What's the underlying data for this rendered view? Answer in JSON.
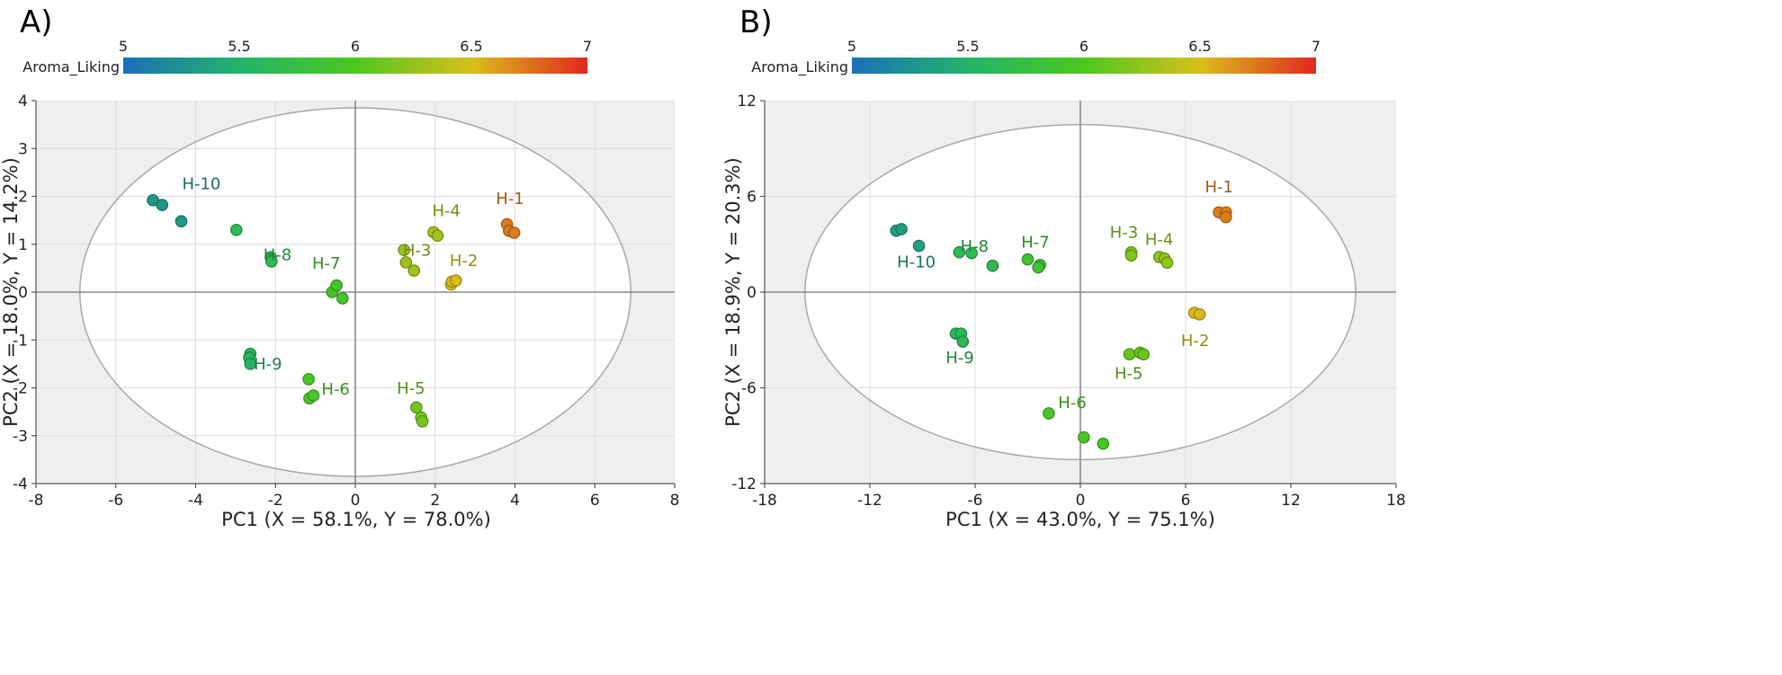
{
  "colorbar": {
    "colors": [
      "#1a70b8",
      "#22b468",
      "#4cc81e",
      "#d9bf1a",
      "#e3281f"
    ]
  },
  "chart_data": [
    {
      "type": "scatter",
      "panel_label": "A)",
      "title": "",
      "xlabel": "PC1 (X = 58.1%, Y = 78.0%)",
      "ylabel": "PC2 (X = 18.0%, Y = 14.2%)",
      "xlim": [
        -8,
        8
      ],
      "ylim": [
        -4,
        4
      ],
      "xticks": [
        -8,
        -6,
        -4,
        -2,
        0,
        2,
        4,
        6,
        8
      ],
      "yticks": [
        -4,
        -3,
        -2,
        -1,
        0,
        1,
        2,
        3,
        4
      ],
      "grid": true,
      "ellipse": {
        "rx": 6.9,
        "ry": 3.85
      },
      "colorbar": {
        "label": "Aroma_Liking",
        "min": 5,
        "max": 7,
        "ticks": [
          "5",
          "5.5",
          "6",
          "6.5",
          "7"
        ]
      },
      "groups": [
        {
          "label": "H-1",
          "liking": 6.72,
          "points": [
            [
              3.8,
              1.42
            ],
            [
              3.85,
              1.28
            ],
            [
              3.98,
              1.24
            ]
          ]
        },
        {
          "label": "H-2",
          "liking": 6.52,
          "points": [
            [
              2.4,
              0.16
            ],
            [
              2.42,
              0.22
            ],
            [
              2.52,
              0.24
            ]
          ]
        },
        {
          "label": "H-3",
          "liking": 6.28,
          "points": [
            [
              1.22,
              0.88
            ],
            [
              1.27,
              0.62
            ],
            [
              1.47,
              0.45
            ]
          ]
        },
        {
          "label": "H-4",
          "liking": 6.3,
          "points": [
            [
              1.96,
              1.25
            ],
            [
              2.06,
              1.18
            ]
          ]
        },
        {
          "label": "H-5",
          "liking": 6.15,
          "points": [
            [
              1.53,
              -2.41
            ],
            [
              1.65,
              -2.62
            ],
            [
              1.68,
              -2.7
            ]
          ]
        },
        {
          "label": "H-6",
          "liking": 5.95,
          "points": [
            [
              -1.17,
              -1.82
            ],
            [
              -1.15,
              -2.22
            ],
            [
              -1.05,
              -2.16
            ]
          ]
        },
        {
          "label": "H-7",
          "liking": 5.92,
          "points": [
            [
              -0.58,
              0.0
            ],
            [
              -0.47,
              0.14
            ],
            [
              -0.32,
              -0.13
            ]
          ]
        },
        {
          "label": "H-8",
          "liking": 5.65,
          "points": [
            [
              -2.98,
              1.3
            ],
            [
              -2.12,
              0.73
            ],
            [
              -2.1,
              0.64
            ]
          ]
        },
        {
          "label": "H-9",
          "liking": 5.55,
          "points": [
            [
              -2.63,
              -1.29
            ],
            [
              -2.66,
              -1.37
            ],
            [
              -2.63,
              -1.5
            ]
          ]
        },
        {
          "label": "H-10",
          "liking": 5.3,
          "points": [
            [
              -5.07,
              1.92
            ],
            [
              -4.84,
              1.82
            ],
            [
              -4.36,
              1.48
            ]
          ]
        }
      ]
    },
    {
      "type": "scatter",
      "panel_label": "B)",
      "title": "",
      "xlabel": "PC1 (X = 43.0%, Y = 75.1%)",
      "ylabel": "PC2 (X = 18.9%, Y = 20.3%)",
      "xlim": [
        -18,
        18
      ],
      "ylim": [
        -12,
        12
      ],
      "xticks": [
        -18,
        -12,
        -6,
        0,
        6,
        12,
        18
      ],
      "yticks": [
        -12,
        -6,
        0,
        6,
        12
      ],
      "grid": true,
      "ellipse": {
        "rx": 15.7,
        "ry": 10.5
      },
      "colorbar": {
        "label": "Aroma_Liking",
        "min": 5,
        "max": 7,
        "ticks": [
          "5",
          "5.5",
          "6",
          "6.5",
          "7"
        ]
      },
      "groups": [
        {
          "label": "H-1",
          "liking": 6.72,
          "points": [
            [
              7.9,
              5.0
            ],
            [
              8.3,
              5.0
            ],
            [
              8.3,
              4.7
            ]
          ]
        },
        {
          "label": "H-2",
          "liking": 6.52,
          "points": [
            [
              6.5,
              -1.3
            ],
            [
              6.8,
              -1.4
            ]
          ]
        },
        {
          "label": "H-3",
          "liking": 6.2,
          "points": [
            [
              2.9,
              2.5
            ],
            [
              2.9,
              2.3
            ]
          ]
        },
        {
          "label": "H-4",
          "liking": 6.25,
          "points": [
            [
              4.5,
              2.2
            ],
            [
              4.8,
              2.1
            ],
            [
              4.95,
              1.85
            ]
          ]
        },
        {
          "label": "H-5",
          "liking": 6.1,
          "points": [
            [
              2.8,
              -3.9
            ],
            [
              3.4,
              -3.8
            ],
            [
              3.6,
              -3.9
            ]
          ]
        },
        {
          "label": "H-6",
          "liking": 5.95,
          "points": [
            [
              -1.8,
              -7.6
            ],
            [
              0.2,
              -9.1
            ],
            [
              1.3,
              -9.5
            ]
          ]
        },
        {
          "label": "H-7",
          "liking": 5.85,
          "points": [
            [
              -3.0,
              2.05
            ],
            [
              -2.3,
              1.7
            ],
            [
              -2.4,
              1.55
            ]
          ]
        },
        {
          "label": "H-8",
          "liking": 5.65,
          "points": [
            [
              -6.9,
              2.5
            ],
            [
              -6.2,
              2.45
            ],
            [
              -5.0,
              1.65
            ]
          ]
        },
        {
          "label": "H-9",
          "liking": 5.6,
          "points": [
            [
              -7.1,
              -2.6
            ],
            [
              -6.8,
              -2.6
            ],
            [
              -6.7,
              -3.1
            ]
          ]
        },
        {
          "label": "H-10",
          "liking": 5.35,
          "points": [
            [
              -10.5,
              3.85
            ],
            [
              -10.2,
              3.95
            ],
            [
              -9.2,
              2.9
            ]
          ]
        }
      ]
    }
  ]
}
